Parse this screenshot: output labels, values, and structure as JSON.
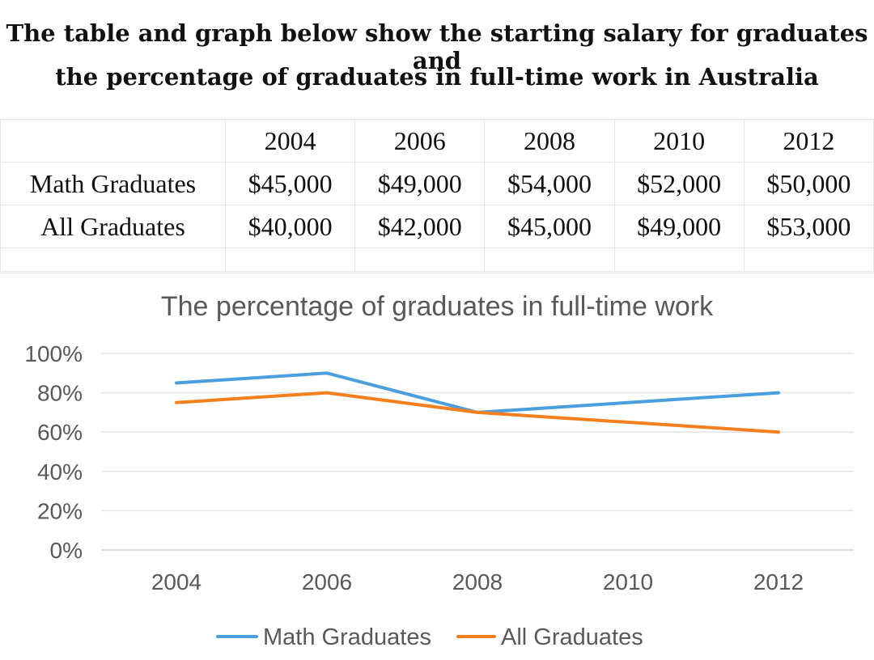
{
  "heading": {
    "line1": "The table and graph below show the starting salary for graduates and",
    "line2": "the percentage of graduates in full-time work in Australia"
  },
  "salary_table": {
    "years": [
      "2004",
      "2006",
      "2008",
      "2010",
      "2012"
    ],
    "rows": [
      {
        "label": "Math Graduates",
        "values": [
          "$45,000",
          "$49,000",
          "$54,000",
          "$52,000",
          "$50,000"
        ]
      },
      {
        "label": "All Graduates",
        "values": [
          "$40,000",
          "$42,000",
          "$45,000",
          "$49,000",
          "$53,000"
        ]
      }
    ]
  },
  "chart_data": {
    "type": "line",
    "title": "The percentage of graduates in full-time work",
    "x": [
      "2004",
      "2006",
      "2008",
      "2010",
      "2012"
    ],
    "xlabel": "",
    "ylabel": "",
    "ylim": [
      0,
      100
    ],
    "y_ticks": [
      "0%",
      "20%",
      "40%",
      "60%",
      "80%",
      "100%"
    ],
    "grid": true,
    "legend": "bottom",
    "series": [
      {
        "name": "Math Graduates",
        "color": "#4a9ede",
        "values": [
          85,
          90,
          70,
          75,
          80
        ]
      },
      {
        "name": "All Graduates",
        "color": "#f47f1d",
        "values": [
          75,
          80,
          70,
          65,
          60
        ]
      }
    ]
  }
}
